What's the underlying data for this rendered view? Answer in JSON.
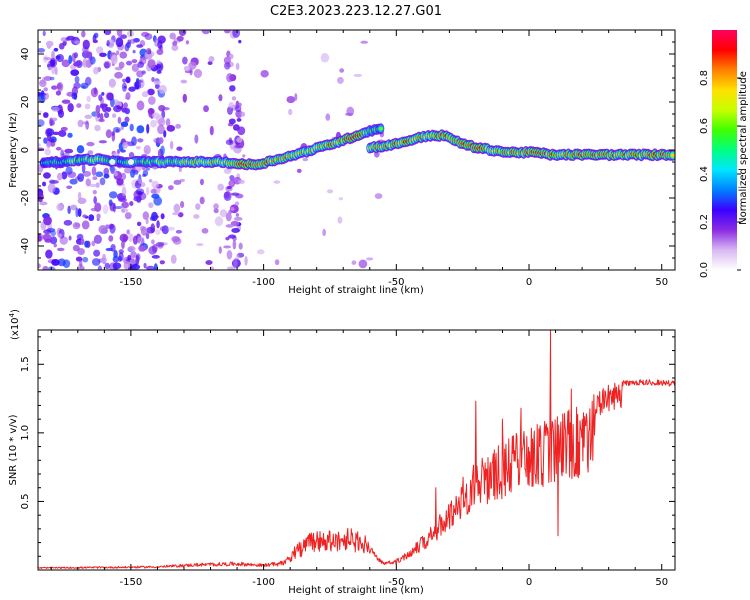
{
  "figure": {
    "title": "C2E3.2023.223.12.27.G01"
  },
  "chart_data": [
    {
      "type": "heatmap",
      "panel": "spectrogram",
      "xlabel": "Height of straight line (km)",
      "ylabel": "Frequency (Hz)",
      "xlim": [
        -185,
        55
      ],
      "ylim": [
        -50,
        50
      ],
      "x_ticks": [
        -150,
        -100,
        -50,
        0,
        50
      ],
      "y_ticks": [
        -40,
        -20,
        0,
        20,
        40
      ],
      "colorbar": {
        "label": "Normalized spectral amplitude",
        "range": [
          0,
          1
        ],
        "ticks": [
          "0.0",
          "0.2",
          "0.4",
          "0.6",
          "0.8"
        ],
        "colormap": [
          "#ffffff",
          "#d9b8f2",
          "#8a2be2",
          "#3a00ff",
          "#0080ff",
          "#00e5ff",
          "#00ff80",
          "#40ff00",
          "#c8ff00",
          "#ffe000",
          "#ff8000",
          "#ff0000",
          "#ff0060"
        ]
      },
      "ridge": [
        [
          -183,
          -5,
          0.5
        ],
        [
          -175,
          -5,
          0.55
        ],
        [
          -168,
          -4,
          0.6
        ],
        [
          -162,
          -4,
          0.7
        ],
        [
          -155,
          -5,
          0.5
        ],
        [
          -145,
          -5,
          0.6
        ],
        [
          -138,
          -5,
          0.65
        ],
        [
          -130,
          -5,
          0.7
        ],
        [
          -122,
          -5,
          0.75
        ],
        [
          -115,
          -5,
          0.7
        ],
        [
          -108,
          -6,
          0.95
        ],
        [
          -102,
          -6,
          0.9
        ],
        [
          -95,
          -4,
          0.8
        ],
        [
          -88,
          -2,
          0.75
        ],
        [
          -82,
          0,
          0.75
        ],
        [
          -76,
          2,
          0.8
        ],
        [
          -70,
          4,
          0.85
        ],
        [
          -65,
          6,
          0.95
        ],
        [
          -60,
          8,
          0.6
        ],
        [
          -55,
          9,
          0.5
        ],
        [
          -60,
          1,
          0.75
        ],
        [
          -52,
          2,
          0.8
        ],
        [
          -45,
          4,
          0.85
        ],
        [
          -38,
          6,
          0.75
        ],
        [
          -32,
          6,
          0.9
        ],
        [
          -26,
          3,
          0.8
        ],
        [
          -20,
          1,
          0.9
        ],
        [
          -14,
          0,
          0.75
        ],
        [
          -8,
          -1,
          0.8
        ],
        [
          -2,
          -1,
          0.85
        ],
        [
          3,
          -1,
          0.95
        ],
        [
          8,
          -2,
          0.8
        ],
        [
          14,
          -2,
          0.85
        ],
        [
          20,
          -2,
          0.85
        ],
        [
          26,
          -2,
          0.85
        ],
        [
          32,
          -2,
          0.85
        ],
        [
          38,
          -2,
          0.85
        ],
        [
          44,
          -2,
          0.85
        ],
        [
          50,
          -2,
          0.85
        ],
        [
          55,
          -2,
          0.85
        ]
      ]
    },
    {
      "type": "line",
      "panel": "snr",
      "xlabel": "Height of straight line (km)",
      "ylabel": "SNR (10 * v/v)",
      "y_multiplier": "(x10^4)",
      "y_multiplier_base": "(x10",
      "y_multiplier_exp": "4",
      "y_multiplier_close": ")",
      "xlim": [
        -185,
        55
      ],
      "ylim": [
        0,
        17500
      ],
      "x_ticks": [
        -150,
        -100,
        -50,
        0,
        50
      ],
      "y_ticks": [
        5000,
        10000,
        15000
      ],
      "y_tick_labels": [
        "0.5",
        "1.0",
        "1.5"
      ],
      "color": "#ee2222",
      "envelope": [
        [
          -185,
          200
        ],
        [
          -160,
          250
        ],
        [
          -140,
          300
        ],
        [
          -125,
          500
        ],
        [
          -110,
          600
        ],
        [
          -100,
          450
        ],
        [
          -92,
          700
        ],
        [
          -88,
          1800
        ],
        [
          -82,
          2800
        ],
        [
          -75,
          3000
        ],
        [
          -68,
          3100
        ],
        [
          -62,
          2600
        ],
        [
          -58,
          1200
        ],
        [
          -55,
          600
        ],
        [
          -50,
          800
        ],
        [
          -45,
          1600
        ],
        [
          -40,
          2600
        ],
        [
          -35,
          3600
        ],
        [
          -30,
          5200
        ],
        [
          -25,
          6800
        ],
        [
          -20,
          8200
        ],
        [
          -15,
          8800
        ],
        [
          -10,
          9400
        ],
        [
          -5,
          10000
        ],
        [
          0,
          10400
        ],
        [
          5,
          10800
        ],
        [
          10,
          11300
        ],
        [
          15,
          11700
        ],
        [
          20,
          12300
        ],
        [
          25,
          12900
        ],
        [
          30,
          13500
        ],
        [
          35,
          13800
        ],
        [
          40,
          13900
        ],
        [
          45,
          13900
        ],
        [
          50,
          13850
        ],
        [
          55,
          13800
        ]
      ],
      "spikes": [
        [
          -35,
          6000
        ],
        [
          -20,
          12300
        ],
        [
          -10,
          11000
        ],
        [
          -3,
          11800
        ],
        [
          4,
          9000
        ],
        [
          8,
          17500
        ],
        [
          11,
          2500
        ],
        [
          16,
          13200
        ]
      ]
    }
  ]
}
